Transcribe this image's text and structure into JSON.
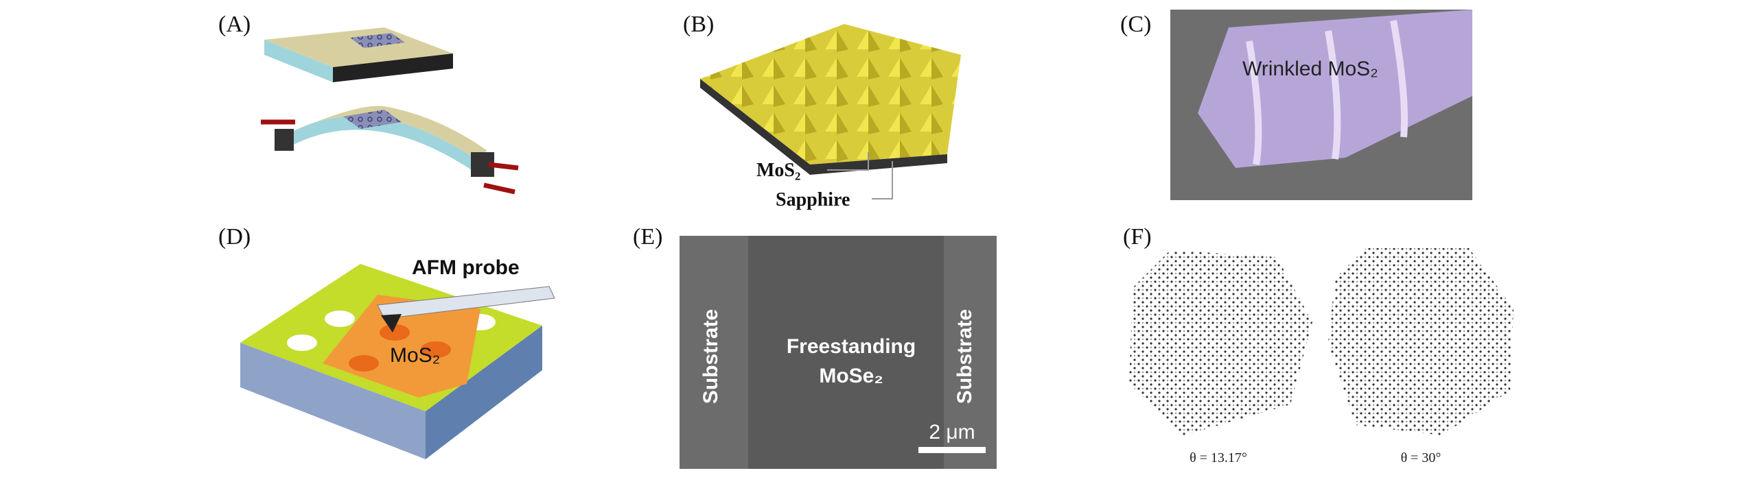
{
  "panels": [
    {
      "label": "(A)"
    },
    {
      "label": "(B)",
      "annotations": [
        "MoS₂",
        "Sapphire"
      ]
    },
    {
      "label": "(C)",
      "annotations": [
        "Wrinkled MoS₂"
      ]
    },
    {
      "label": "(D)",
      "annotations": [
        "AFM probe",
        "MoS₂"
      ]
    },
    {
      "label": "(E)",
      "annotations": [
        "Substrate",
        "Substrate",
        "Freestanding",
        "MoSe₂",
        "2 μm"
      ]
    },
    {
      "label": "(F)",
      "annotations": [
        "θ = 13.17°",
        "θ = 30°"
      ]
    }
  ]
}
